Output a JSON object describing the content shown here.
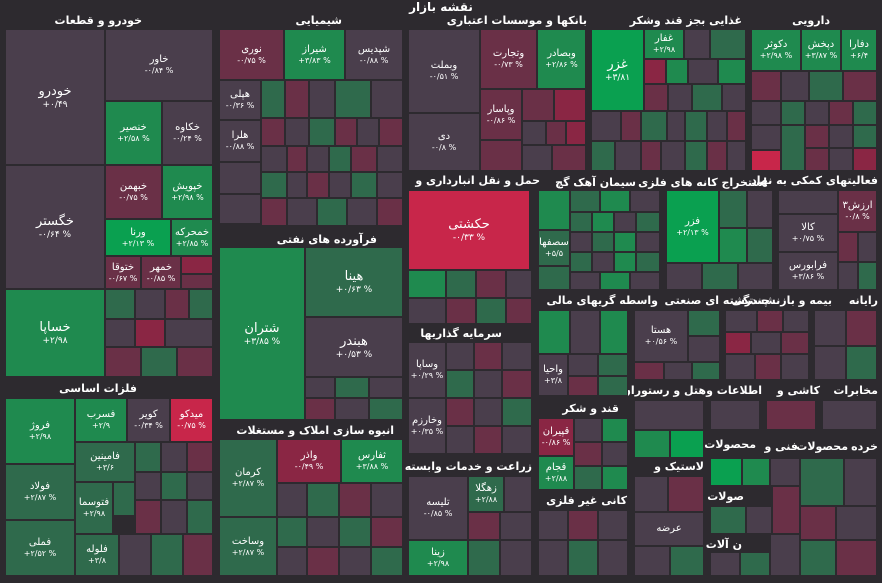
{
  "map_title": "نقشه بازار",
  "colors": {
    "strong_gain": "#0aa050",
    "gain": "#1f8a4f",
    "slight_gain": "#2f6a4c",
    "neutral": "#4a3e4c",
    "slight_loss": "#6a3047",
    "loss": "#8a2644",
    "strong_loss": "#c8264a",
    "background": "#2d2a2f"
  },
  "sectors": {
    "auto": "خودرو و قطعات",
    "chemical": "شیمیایی",
    "banks": "بانکها و موسسات اعتباری",
    "food": "غذایی بجز قند وشکر",
    "pharma": "دارویی",
    "oil": "فرآورده های نفتی",
    "transport": "حمل و نقل انبارداری و",
    "cement": "سیمان آهک گچ",
    "mining": "استخراج کانه های فلزی",
    "aux": "فعالیتهای کمکی به نهاد",
    "metals": "فلزات اساسی",
    "invest": "سرمایه گذاریها",
    "finance": "واسطه گریهای مالی",
    "multi": "چندرشته ای صنعتی",
    "insurance": "بیمه و بازنشستگی",
    "computer": "رایانه",
    "sugar": "قند و شکر",
    "hotel": "هتل و رستوران",
    "info": "اطلاعات و",
    "tile": "کاشی و",
    "telecom": "مخابرات",
    "construction": "انبوه سازی املاک و مستغلات",
    "agri": "زراعت و خدمات وابسته",
    "rubber": "لاستیک و",
    "nonmetal": "کانی غیر فلزی",
    "product1": "محصولات",
    "product2": "محصولات",
    "technical": "فنی و",
    "wood": "خرده",
    "metalproducts": "صولات",
    "machines": "ن آلات"
  },
  "tiles": {
    "khodro": {
      "name": "خودرو",
      "change": "+۰/۴۹"
    },
    "khavar": {
      "name": "خاور",
      "change": "-۰/۸۴ %"
    },
    "khegostar": {
      "name": "خگستر",
      "change": "-۰/۶۴ %"
    },
    "khansir": {
      "name": "خنصیر",
      "change": "+۲/۵۸ %"
    },
    "khakave": {
      "name": "خکاوه",
      "change": "-۰/۲۴ %"
    },
    "khbahman": {
      "name": "خبهمن",
      "change": "-۰/۷۵ %"
    },
    "khpooyesh": {
      "name": "خپویش",
      "change": "+۲/۹۸ %"
    },
    "varena": {
      "name": "ورنا",
      "change": "+۲/۱۳ %"
    },
    "khamehrekeh": {
      "name": "خمحرکه",
      "change": "+۲/۸۵ %"
    },
    "khtoogha": {
      "name": "ختوقا",
      "change": "-۰/۶۷ %"
    },
    "khzamhar": {
      "name": "خمهر",
      "change": "-۰/۸۵ %"
    },
    "khsapa": {
      "name": "خساپا",
      "change": "+۲/۹۸"
    },
    "noori": {
      "name": "نوری",
      "change": "-۰/۷۵ %"
    },
    "shiraz": {
      "name": "شیراز",
      "change": "+۳/۸۳ %"
    },
    "shdis": {
      "name": "شپدیس",
      "change": "-۰/۸۸ %"
    },
    "heli": {
      "name": "هپلی",
      "change": "-۰/۳۶ %"
    },
    "harla": {
      "name": "هلرا",
      "change": "-۰/۸۸ %"
    },
    "vbmellat": {
      "name": "وبملت",
      "change": "-۰/۵۱ %"
    },
    "vtejarat": {
      "name": "وتجارت",
      "change": "-۰/۷۳ %"
    },
    "vbsader": {
      "name": "وبصادر",
      "change": "+۲/۸۶ %"
    },
    "vpasar": {
      "name": "وپاسار",
      "change": "-۰/۸۶ %"
    },
    "di": {
      "name": "دی",
      "change": "-۰/۸ %"
    },
    "ghazar": {
      "name": "غزر",
      "change": "+۳/۸۱"
    },
    "ghafar": {
      "name": "غفار",
      "change": "+۲/۹۸"
    },
    "dkosar": {
      "name": "دکوثر",
      "change": "+۲/۹۸ %"
    },
    "dpakhsh": {
      "name": "دپخش",
      "change": "+۳/۸۷ %"
    },
    "dfara": {
      "name": "دفارا",
      "change": "+۶/۴"
    },
    "shatran": {
      "name": "شتران",
      "change": "+۳/۸۵ %"
    },
    "hina": {
      "name": "هینا",
      "change": "+۰/۶۳ %"
    },
    "hbender": {
      "name": "هبندر",
      "change": "+۰/۵۳ %"
    },
    "hkeshti": {
      "name": "حکشتی",
      "change": "-۰/۳۳ %"
    },
    "sepahan": {
      "name": "سصفها",
      "change": "+۵/۵"
    },
    "fazar": {
      "name": "فزر",
      "change": "+۲/۱۳ %"
    },
    "kala": {
      "name": "کالا",
      "change": "+۰/۷۵ %"
    },
    "farabourse": {
      "name": "فرابورس",
      "change": "+۳/۸۶ %"
    },
    "arzesh": {
      "name": "ارزش۳",
      "change": "-۰/۸ %"
    },
    "fooladz": {
      "name": "فروژ",
      "change": "+۲/۹۸"
    },
    "fasarb": {
      "name": "فسرب",
      "change": "+۲/۹"
    },
    "kavir": {
      "name": "کویر",
      "change": "-۰/۳۴ %"
    },
    "meydko": {
      "name": "میدکو",
      "change": "-۰/۷۵ %"
    },
    "famineen": {
      "name": "فامینین",
      "change": "+۳/۶"
    },
    "foolad": {
      "name": "فولاد",
      "change": "+۲/۸۷ %"
    },
    "fasma": {
      "name": "فتوسما",
      "change": "+۲/۹۸"
    },
    "felouleh": {
      "name": "فلوله",
      "change": "+۳/۸"
    },
    "fameli": {
      "name": "فملی",
      "change": "+۲/۵۲ %"
    },
    "vsapa": {
      "name": "وساپا",
      "change": "+۰/۲۹ %"
    },
    "vkharazm": {
      "name": "وخارزم",
      "change": "+۰/۳۵ %"
    },
    "vahiya": {
      "name": "واحیا",
      "change": "+۳/۸"
    },
    "hasta": {
      "name": "هستا",
      "change": "+۰/۵۶ %"
    },
    "kerman": {
      "name": "کرمان",
      "change": "+۲/۸۷ %"
    },
    "vaazar": {
      "name": "واذر",
      "change": "-۰/۴۹ %"
    },
    "thfars": {
      "name": "ثفارس",
      "change": "+۳/۸۸ %"
    },
    "vsakht": {
      "name": "وساخت",
      "change": "+۲/۸۷ %"
    },
    "qpiran": {
      "name": "قپیران",
      "change": "-۰/۸۶ %"
    },
    "qhekmat": {
      "name": "قجام",
      "change": "+۲/۸۸"
    },
    "talise": {
      "name": "تلیسه",
      "change": "-۰/۸۵ %"
    },
    "zhagol": {
      "name": "زهگلا",
      "change": "+۲/۸۸"
    },
    "zina": {
      "name": "زینا",
      "change": "+۲/۹۸"
    },
    "arzeh": {
      "name": "عرضه",
      "change": ""
    }
  }
}
